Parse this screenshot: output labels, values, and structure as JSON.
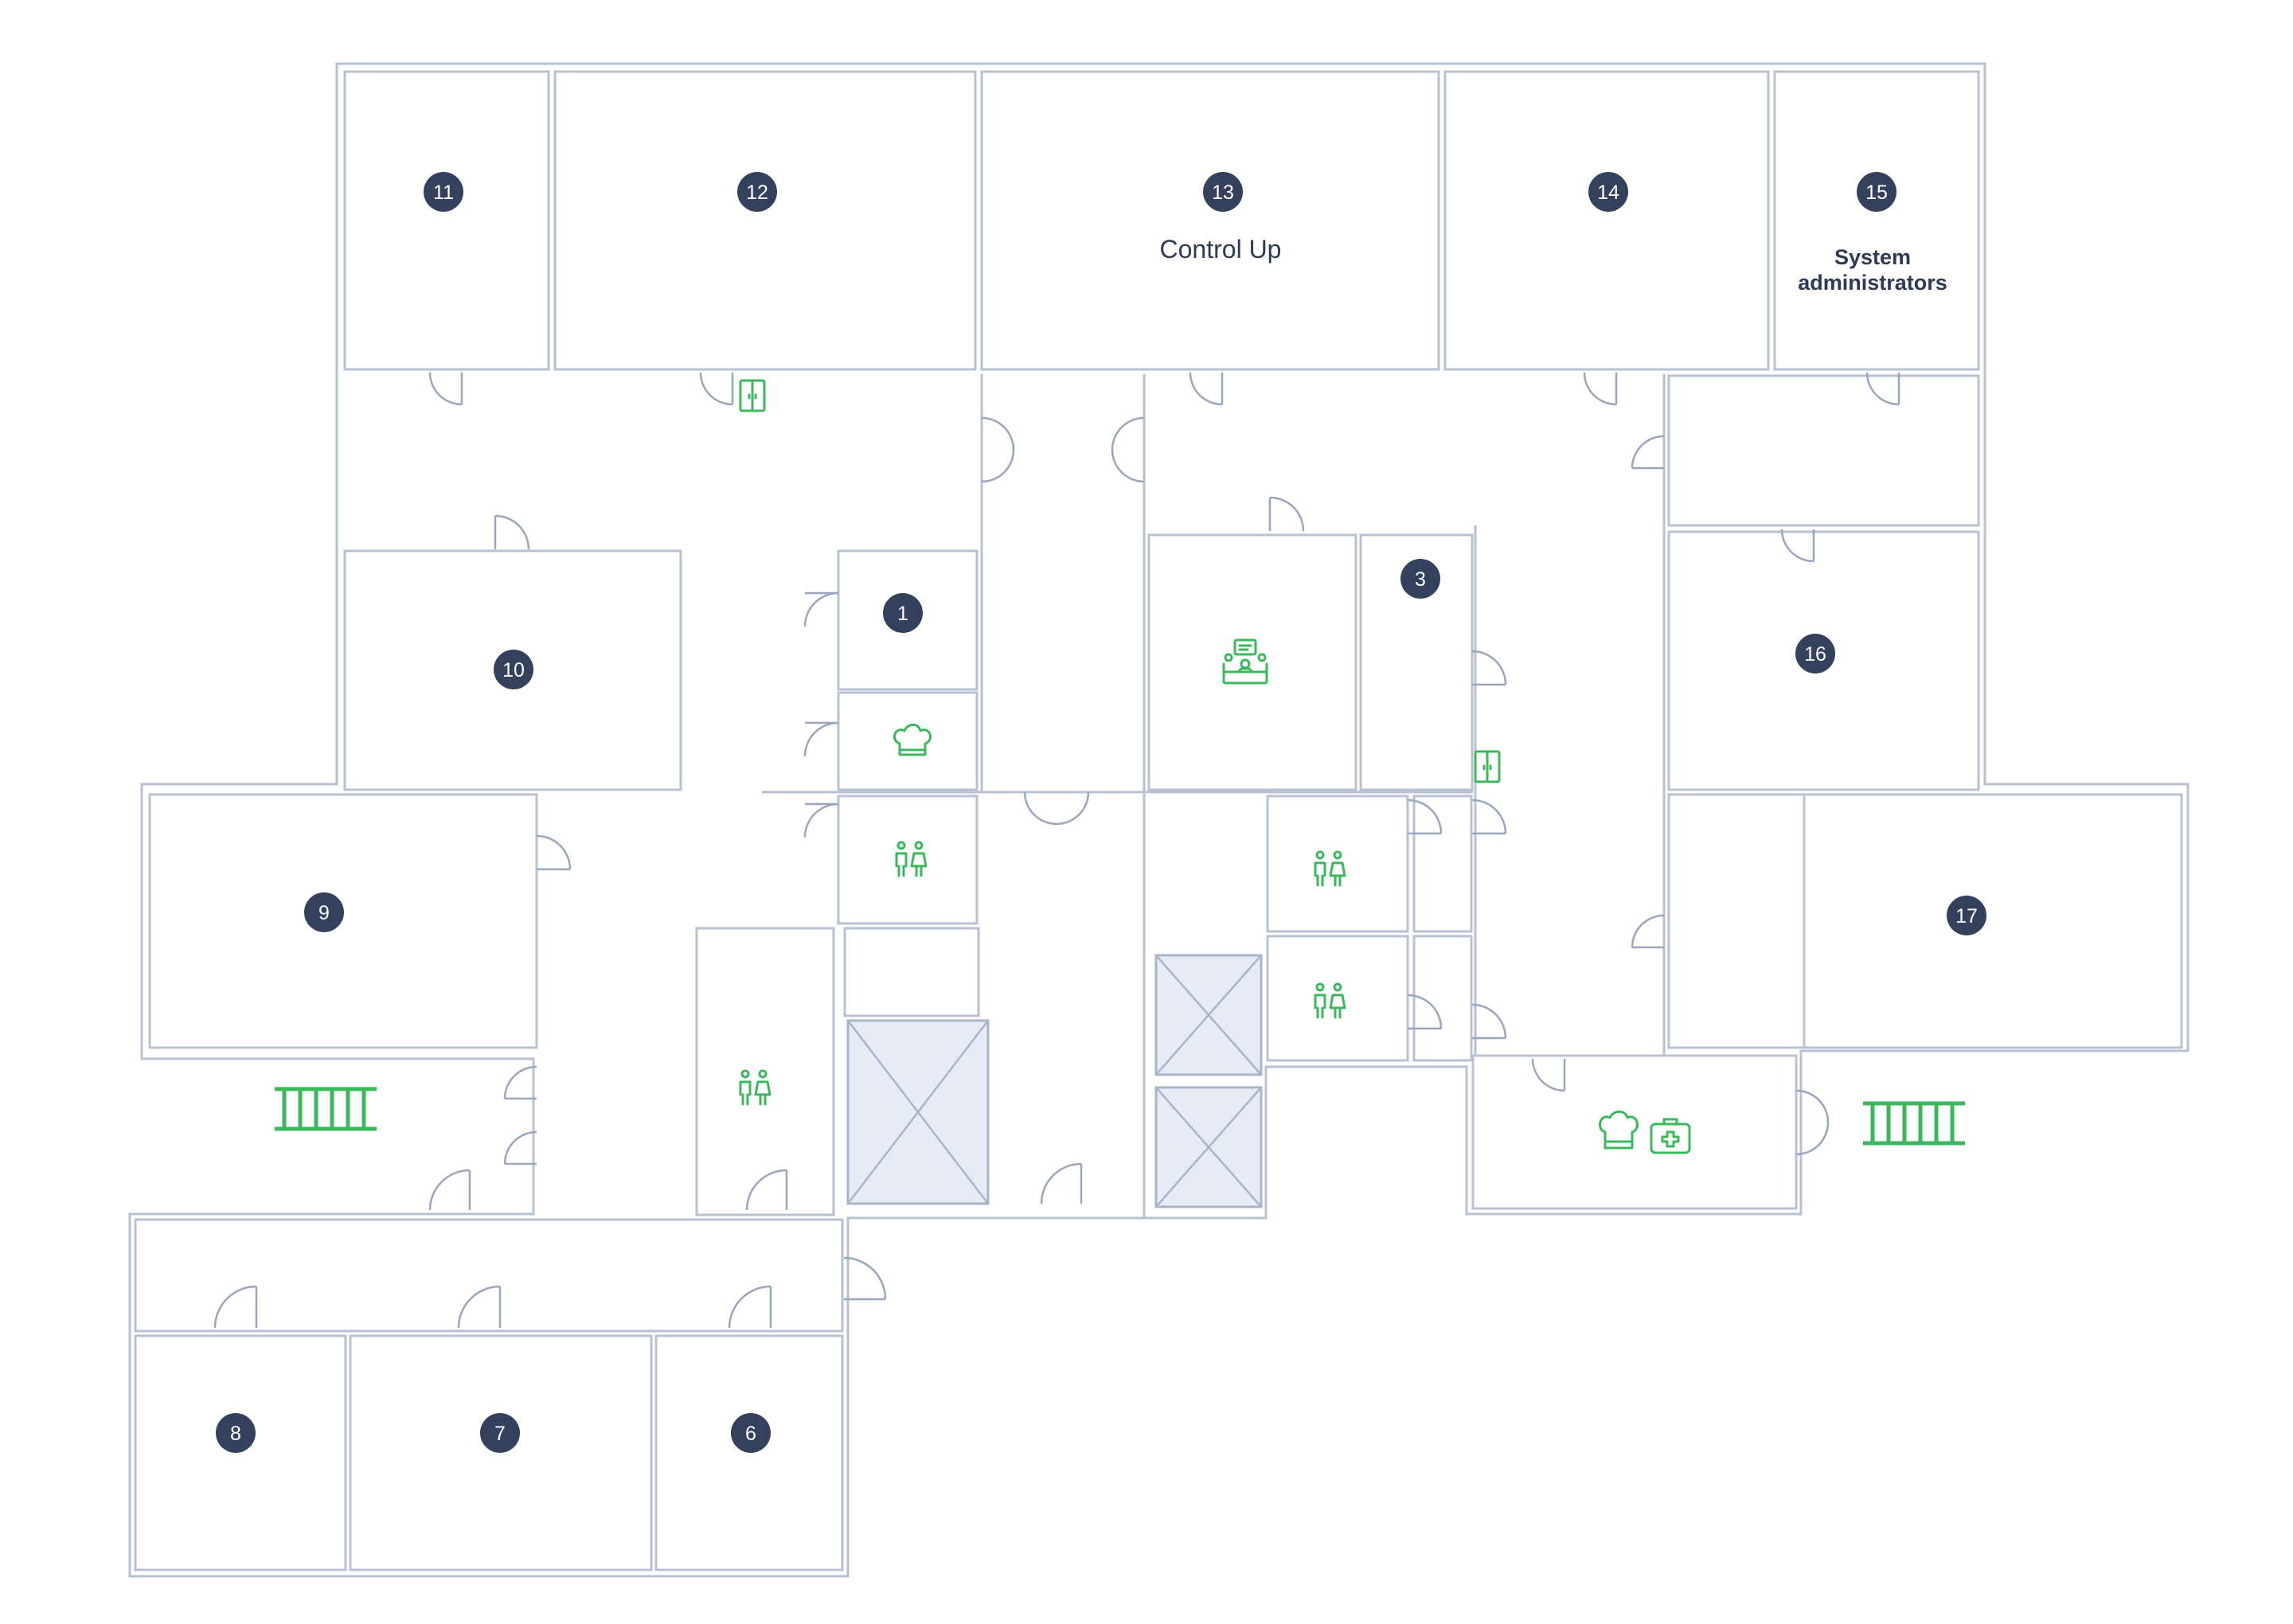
{
  "colors": {
    "wall": "#b7c1d3",
    "badge": "#33415c",
    "badge_text": "#ffffff",
    "icon": "#3cb85c",
    "shaft": "#e6ecf6",
    "label": "#2d3a55"
  },
  "rooms": {
    "r1": {
      "number": "1"
    },
    "r3": {
      "number": "3"
    },
    "r6": {
      "number": "6"
    },
    "r7": {
      "number": "7"
    },
    "r8": {
      "number": "8"
    },
    "r9": {
      "number": "9"
    },
    "r10": {
      "number": "10"
    },
    "r11": {
      "number": "11"
    },
    "r12": {
      "number": "12"
    },
    "r13": {
      "number": "13",
      "label": "Control Up"
    },
    "r14": {
      "number": "14"
    },
    "r15": {
      "number": "15",
      "label_line1": "System",
      "label_line2": "administrators"
    },
    "r16": {
      "number": "16"
    },
    "r17": {
      "number": "17"
    }
  },
  "icons": [
    "wardrobe-icon",
    "kitchen-icon",
    "restroom-icon",
    "meeting-room-icon",
    "first-aid-icon",
    "fire-escape-icon",
    "elevator-shaft"
  ]
}
